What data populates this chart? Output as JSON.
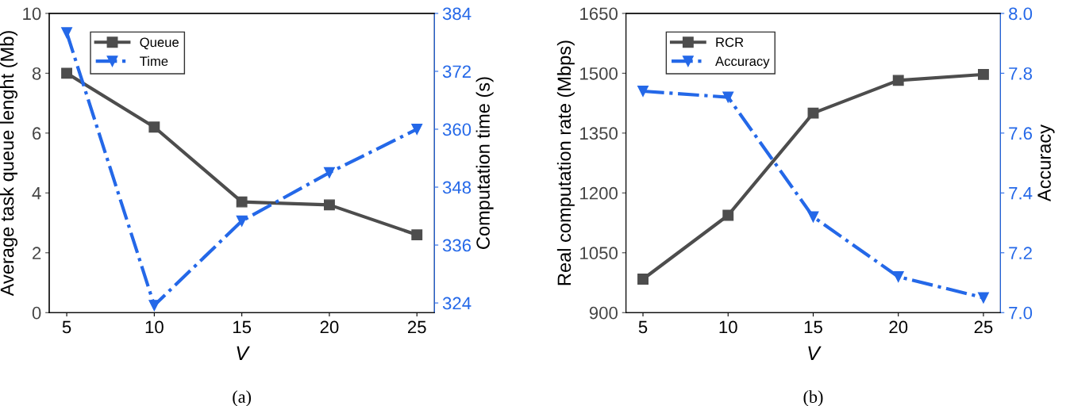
{
  "chart_data": [
    {
      "type": "line",
      "xlabel": "V",
      "ylabel": "Average task queue lenght (Mb)",
      "y2label": "Computation time (s)",
      "x": [
        5,
        10,
        15,
        20,
        25
      ],
      "xlim": [
        4,
        26
      ],
      "xticks": [
        5,
        10,
        15,
        20,
        25
      ],
      "ylim": [
        0,
        10
      ],
      "yticks": [
        0,
        2,
        4,
        6,
        8,
        10
      ],
      "y2lim": [
        322,
        384
      ],
      "y2ticks": [
        324,
        336,
        348,
        360,
        372,
        384
      ],
      "legend": "top left",
      "grid": false,
      "series": [
        {
          "name": "Queue",
          "color": "#4d4d4d",
          "marker": "square",
          "line_style": "solid",
          "values": [
            8.0,
            6.2,
            3.7,
            3.6,
            2.6
          ]
        },
        {
          "name": "Time",
          "color": "#2468e8",
          "marker": "triangle",
          "line_style": "dashdot",
          "axis": "y2",
          "values": [
            380,
            323.5,
            341,
            351,
            360
          ]
        }
      ],
      "annotations": [
        "(a)"
      ]
    },
    {
      "type": "line",
      "xlabel": "V",
      "ylabel": "Real computation rate (Mbps)",
      "y2label": "Accuracy",
      "x": [
        5,
        10,
        15,
        20,
        25
      ],
      "xlim": [
        4,
        26
      ],
      "xticks": [
        5,
        10,
        15,
        20,
        25
      ],
      "ylim": [
        900,
        1650
      ],
      "yticks": [
        900,
        1050,
        1200,
        1350,
        1500,
        1650
      ],
      "y2lim": [
        7.0,
        8.0
      ],
      "y2ticks": [
        {
          "value": 7.0,
          "label": "7.0"
        },
        7.2,
        7.4,
        7.6,
        7.8,
        {
          "value": 8.0,
          "label": "8.0"
        }
      ],
      "legend": "top left",
      "grid": false,
      "series": [
        {
          "name": "RCR",
          "color": "#4d4d4d",
          "marker": "square",
          "line_style": "solid",
          "values": [
            984,
            1144,
            1400,
            1482,
            1497
          ]
        },
        {
          "name": "Accuracy",
          "color": "#2468e8",
          "marker": "triangle",
          "line_style": "dashdot",
          "axis": "y2",
          "values": [
            7.74,
            7.72,
            7.32,
            7.12,
            7.05
          ]
        }
      ],
      "annotations": [
        "(b)"
      ]
    }
  ]
}
